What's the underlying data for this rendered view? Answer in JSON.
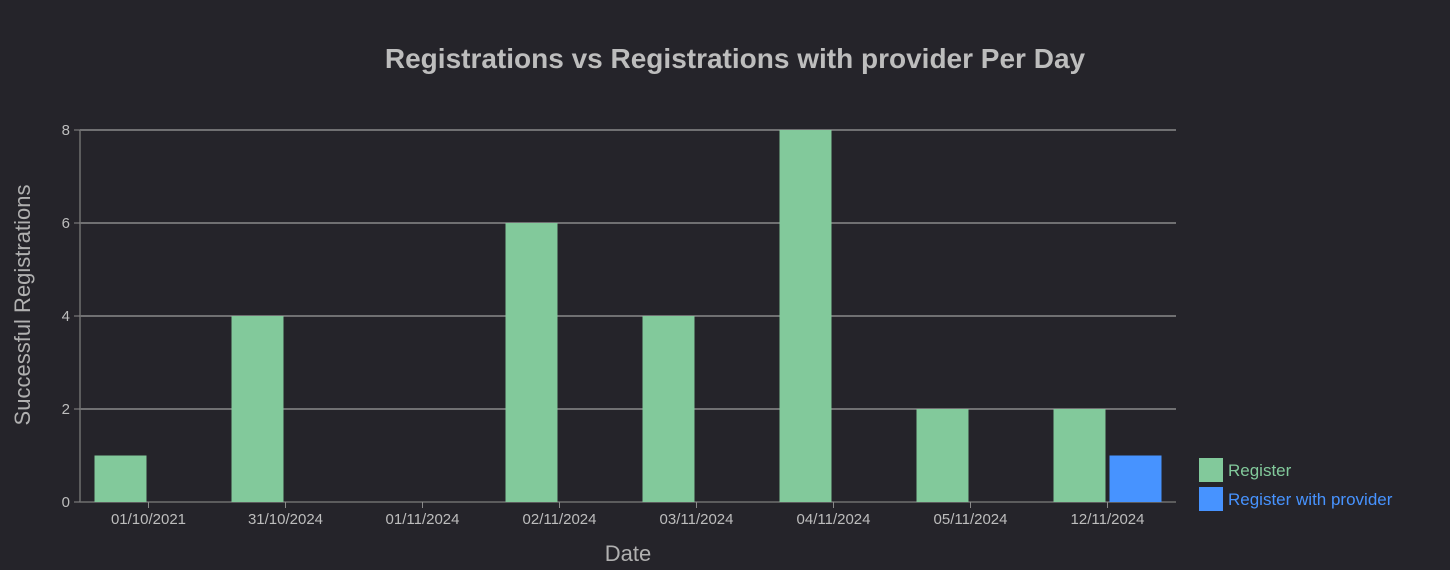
{
  "chart_data": {
    "type": "bar",
    "title": "Registrations vs Registrations with provider Per Day",
    "xlabel": "Date",
    "ylabel": "Successful Registrations",
    "categories": [
      "01/10/2021",
      "31/10/2024",
      "01/11/2024",
      "02/11/2024",
      "03/11/2024",
      "04/11/2024",
      "05/11/2024",
      "12/11/2024"
    ],
    "series": [
      {
        "name": "Register",
        "color": "#82c99b",
        "values": [
          1,
          4,
          0,
          6,
          4,
          8,
          2,
          2
        ]
      },
      {
        "name": "Register with provider",
        "color": "#4793ff",
        "values": [
          0,
          0,
          0,
          0,
          0,
          0,
          0,
          1
        ]
      }
    ],
    "ylim": [
      0,
      8
    ],
    "yticks": [
      0,
      2,
      4,
      6,
      8
    ],
    "grid": true,
    "legend_position": "bottom-right"
  }
}
